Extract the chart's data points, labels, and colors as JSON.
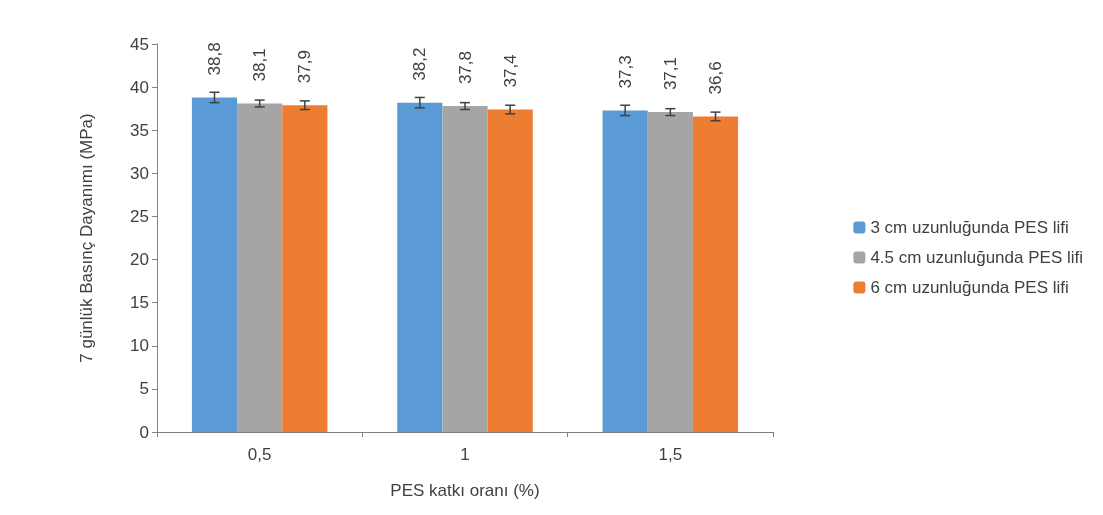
{
  "chart_data": {
    "type": "bar",
    "xlabel": "PES katkı oranı (%)",
    "ylabel": "7 günlük Basınç Dayanımı (MPa)",
    "categories": [
      "0,5",
      "1",
      "1,5"
    ],
    "series": [
      {
        "name": "3 cm uzunluğunda PES lifi",
        "color": "#5b9bd5",
        "values": [
          38.8,
          38.2,
          37.3
        ],
        "errors": [
          0.6,
          0.6,
          0.6
        ],
        "value_labels": [
          "38,8",
          "38,2",
          "37,3"
        ]
      },
      {
        "name": "4.5 cm uzunluğunda PES lifi",
        "color": "#a5a5a5",
        "values": [
          38.1,
          37.8,
          37.1
        ],
        "errors": [
          0.4,
          0.4,
          0.4
        ],
        "value_labels": [
          "38,1",
          "37,8",
          "37,1"
        ]
      },
      {
        "name": "6 cm uzunluğunda PES lifi",
        "color": "#ed7d31",
        "values": [
          37.9,
          37.4,
          36.6
        ],
        "errors": [
          0.5,
          0.5,
          0.5
        ],
        "value_labels": [
          "37,9",
          "37,4",
          "36,6"
        ]
      }
    ],
    "ylim": [
      0,
      45
    ],
    "yticks": [
      0,
      5,
      10,
      15,
      20,
      25,
      30,
      35,
      40,
      45
    ],
    "grid": false,
    "legend": "right"
  }
}
